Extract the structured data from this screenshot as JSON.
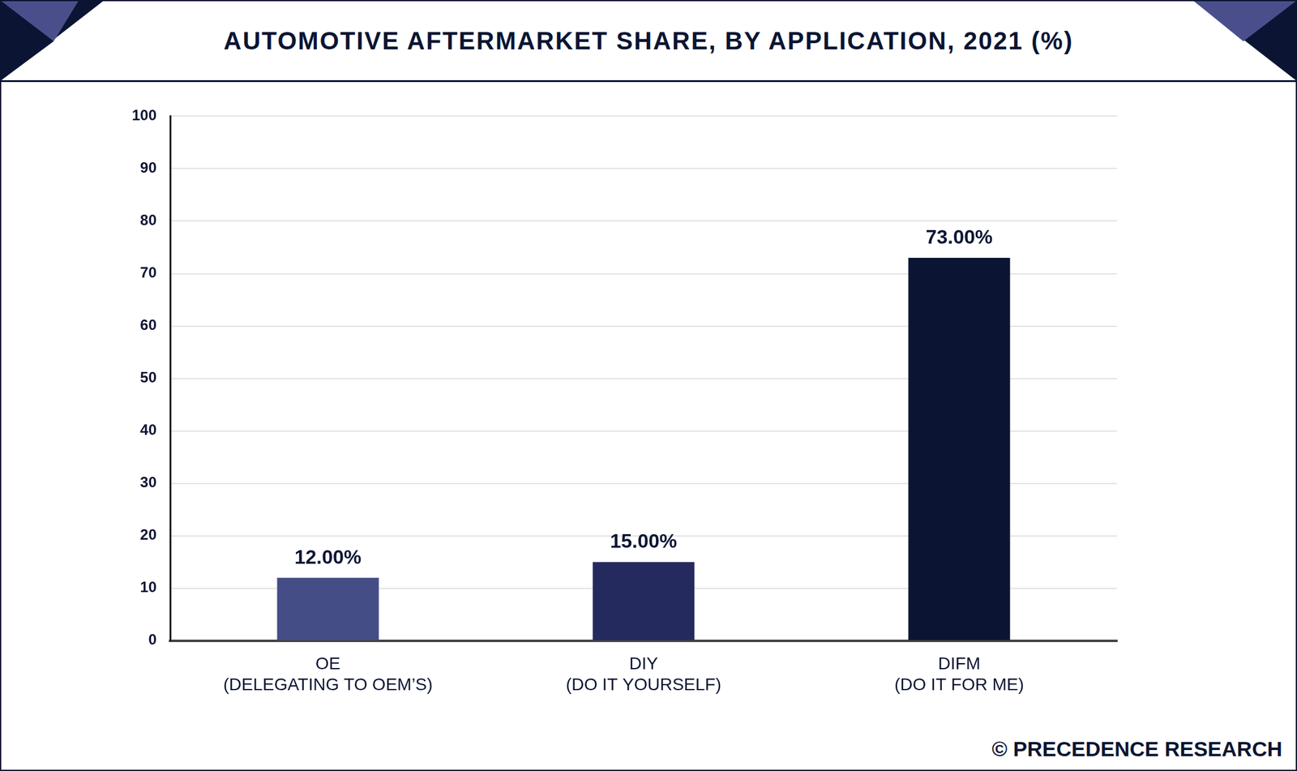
{
  "chart_data": {
    "type": "bar",
    "title": "AUTOMOTIVE AFTERMARKET SHARE, BY APPLICATION, 2021 (%)",
    "categories": [
      [
        "OE",
        "(DELEGATING TO OEM’S)"
      ],
      [
        "DIY",
        "(DO IT YOURSELF)"
      ],
      [
        "DIFM",
        "(DO IT FOR ME)"
      ]
    ],
    "values": [
      12,
      15,
      73
    ],
    "value_labels": [
      "12.00%",
      "15.00%",
      "73.00%"
    ],
    "data_labels": true,
    "colors": [
      "#454d87",
      "#252a5e",
      "#0b1533"
    ],
    "ylim": [
      0,
      100
    ],
    "yticks": [
      0,
      10,
      20,
      30,
      40,
      50,
      60,
      70,
      80,
      90,
      100
    ],
    "grid": true,
    "source": "© PRECEDENCE RESEARCH"
  }
}
